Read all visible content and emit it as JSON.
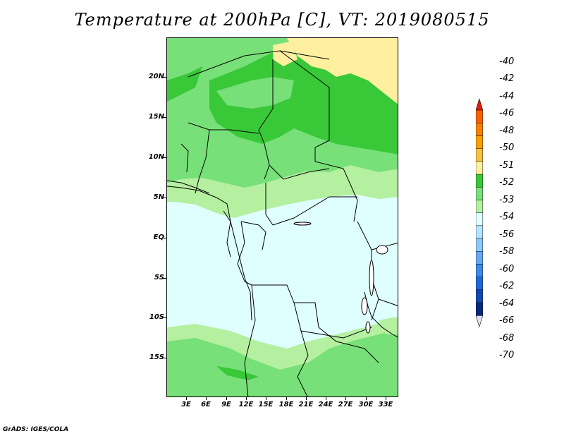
{
  "title": "Temperature at 200hPa [C], VT: 2019080515",
  "credit": "GrADS: IGES/COLA",
  "map": {
    "lat_labels": [
      "20N",
      "15N",
      "10N",
      "5N",
      "EQ",
      "5S",
      "10S",
      "15S"
    ],
    "lon_labels": [
      "3E",
      "6E",
      "9E",
      "12E",
      "15E",
      "18E",
      "21E",
      "24E",
      "27E",
      "30E",
      "33E"
    ],
    "region": "Central Africa",
    "colors": {
      "band_51_50": "#fff0a0",
      "band_52_51": "#38c838",
      "band_53_52": "#78e078",
      "band_54_53": "#b4f0a0",
      "band_56_54": "#e0ffff",
      "boundary": "#000000"
    }
  },
  "colorbar": {
    "labels": [
      "-40",
      "-42",
      "-44",
      "-46",
      "-48",
      "-50",
      "-51",
      "-52",
      "-53",
      "-54",
      "-56",
      "-58",
      "-60",
      "-62",
      "-64",
      "-66",
      "-68",
      "-70"
    ],
    "colors": [
      "#f03000",
      "#f86000",
      "#f88000",
      "#f8a000",
      "#f8c040",
      "#fff0a0",
      "#38c838",
      "#78e078",
      "#b4f0a0",
      "#e0ffff",
      "#b4e4ff",
      "#8cc8f8",
      "#64a8f0",
      "#4088e8",
      "#2068d8",
      "#1448b0",
      "#082880",
      "#d8d8f8"
    ],
    "top_arrow_color": "#e81800",
    "bottom_arrow_color": "#e0e0f8"
  }
}
